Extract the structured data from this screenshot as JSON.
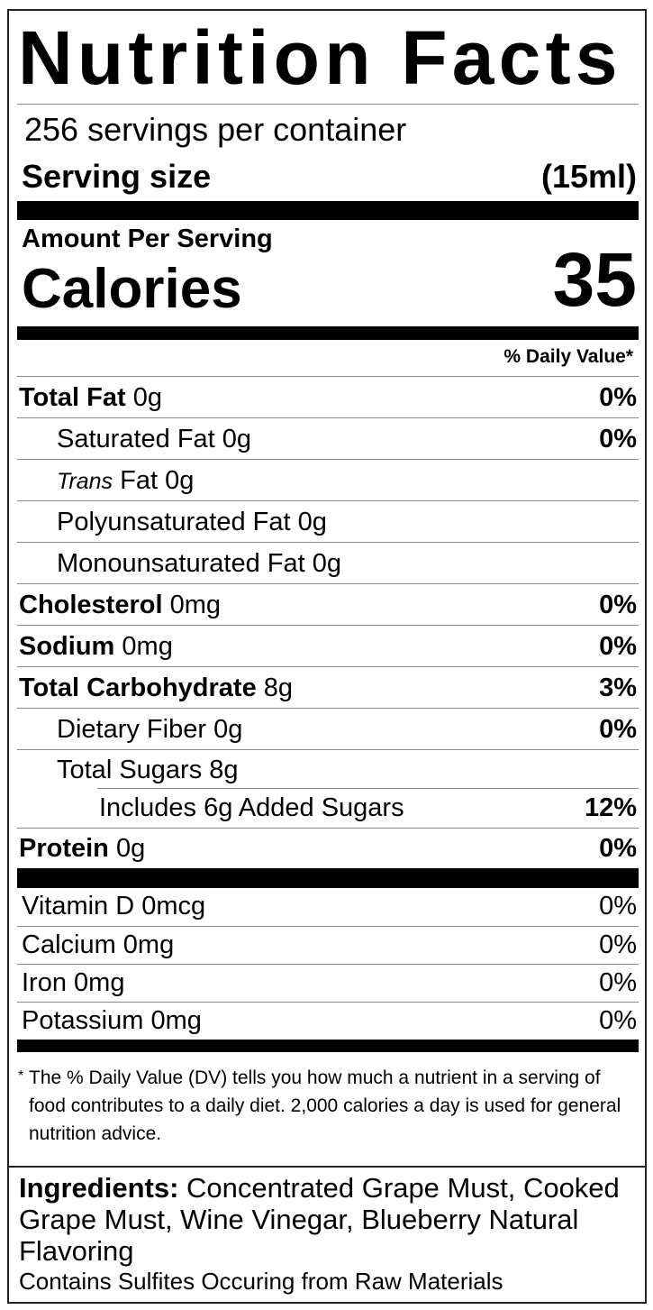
{
  "title": "Nutrition Facts",
  "servings_per_container": "256 servings per container",
  "serving_size": {
    "label": "Serving size",
    "value": "(15ml)"
  },
  "amount_per_serving": "Amount Per Serving",
  "calories": {
    "label": "Calories",
    "value": "35"
  },
  "daily_value_header": "% Daily Value*",
  "nutrients": [
    {
      "name": "Total Fat",
      "amount": "0g",
      "dv": "0%"
    },
    {
      "name": "Saturated Fat",
      "amount": "0g",
      "dv": "0%"
    },
    {
      "name_italic": "Trans",
      "name": "Fat",
      "amount": "0g"
    },
    {
      "name": "Polyunsaturated Fat",
      "amount": "0g"
    },
    {
      "name": "Monounsaturated Fat",
      "amount": "0g"
    },
    {
      "name": "Cholesterol",
      "amount": "0mg",
      "dv": "0%"
    },
    {
      "name": "Sodium",
      "amount": "0mg",
      "dv": "0%"
    },
    {
      "name": "Total Carbohydrate",
      "amount": "8g",
      "dv": "3%"
    },
    {
      "name": "Dietary Fiber",
      "amount": "0g",
      "dv": "0%"
    },
    {
      "name": "Total Sugars",
      "amount": "8g"
    },
    {
      "name": "Includes 6g Added Sugars",
      "dv": "12%"
    },
    {
      "name": "Protein",
      "amount": "0g",
      "dv": "0%"
    }
  ],
  "vitamins": [
    {
      "name": "Vitamin D 0mcg",
      "dv": "0%"
    },
    {
      "name": "Calcium 0mg",
      "dv": "0%"
    },
    {
      "name": "Iron 0mg",
      "dv": "0%"
    },
    {
      "name": "Potassium 0mg",
      "dv": "0%"
    }
  ],
  "footnote": {
    "star": "*",
    "text": "The % Daily Value (DV) tells you how much a nutrient in a serving of food contributes to a daily diet. 2,000 calories a day is used for general nutrition advice."
  },
  "ingredients": {
    "label": "Ingredients:",
    "text": "Concentrated Grape Must, Cooked Grape Must, Wine Vinegar, Blueberry Natural Flavoring",
    "allergen": "Contains Sulfites Occuring from Raw Materials"
  }
}
